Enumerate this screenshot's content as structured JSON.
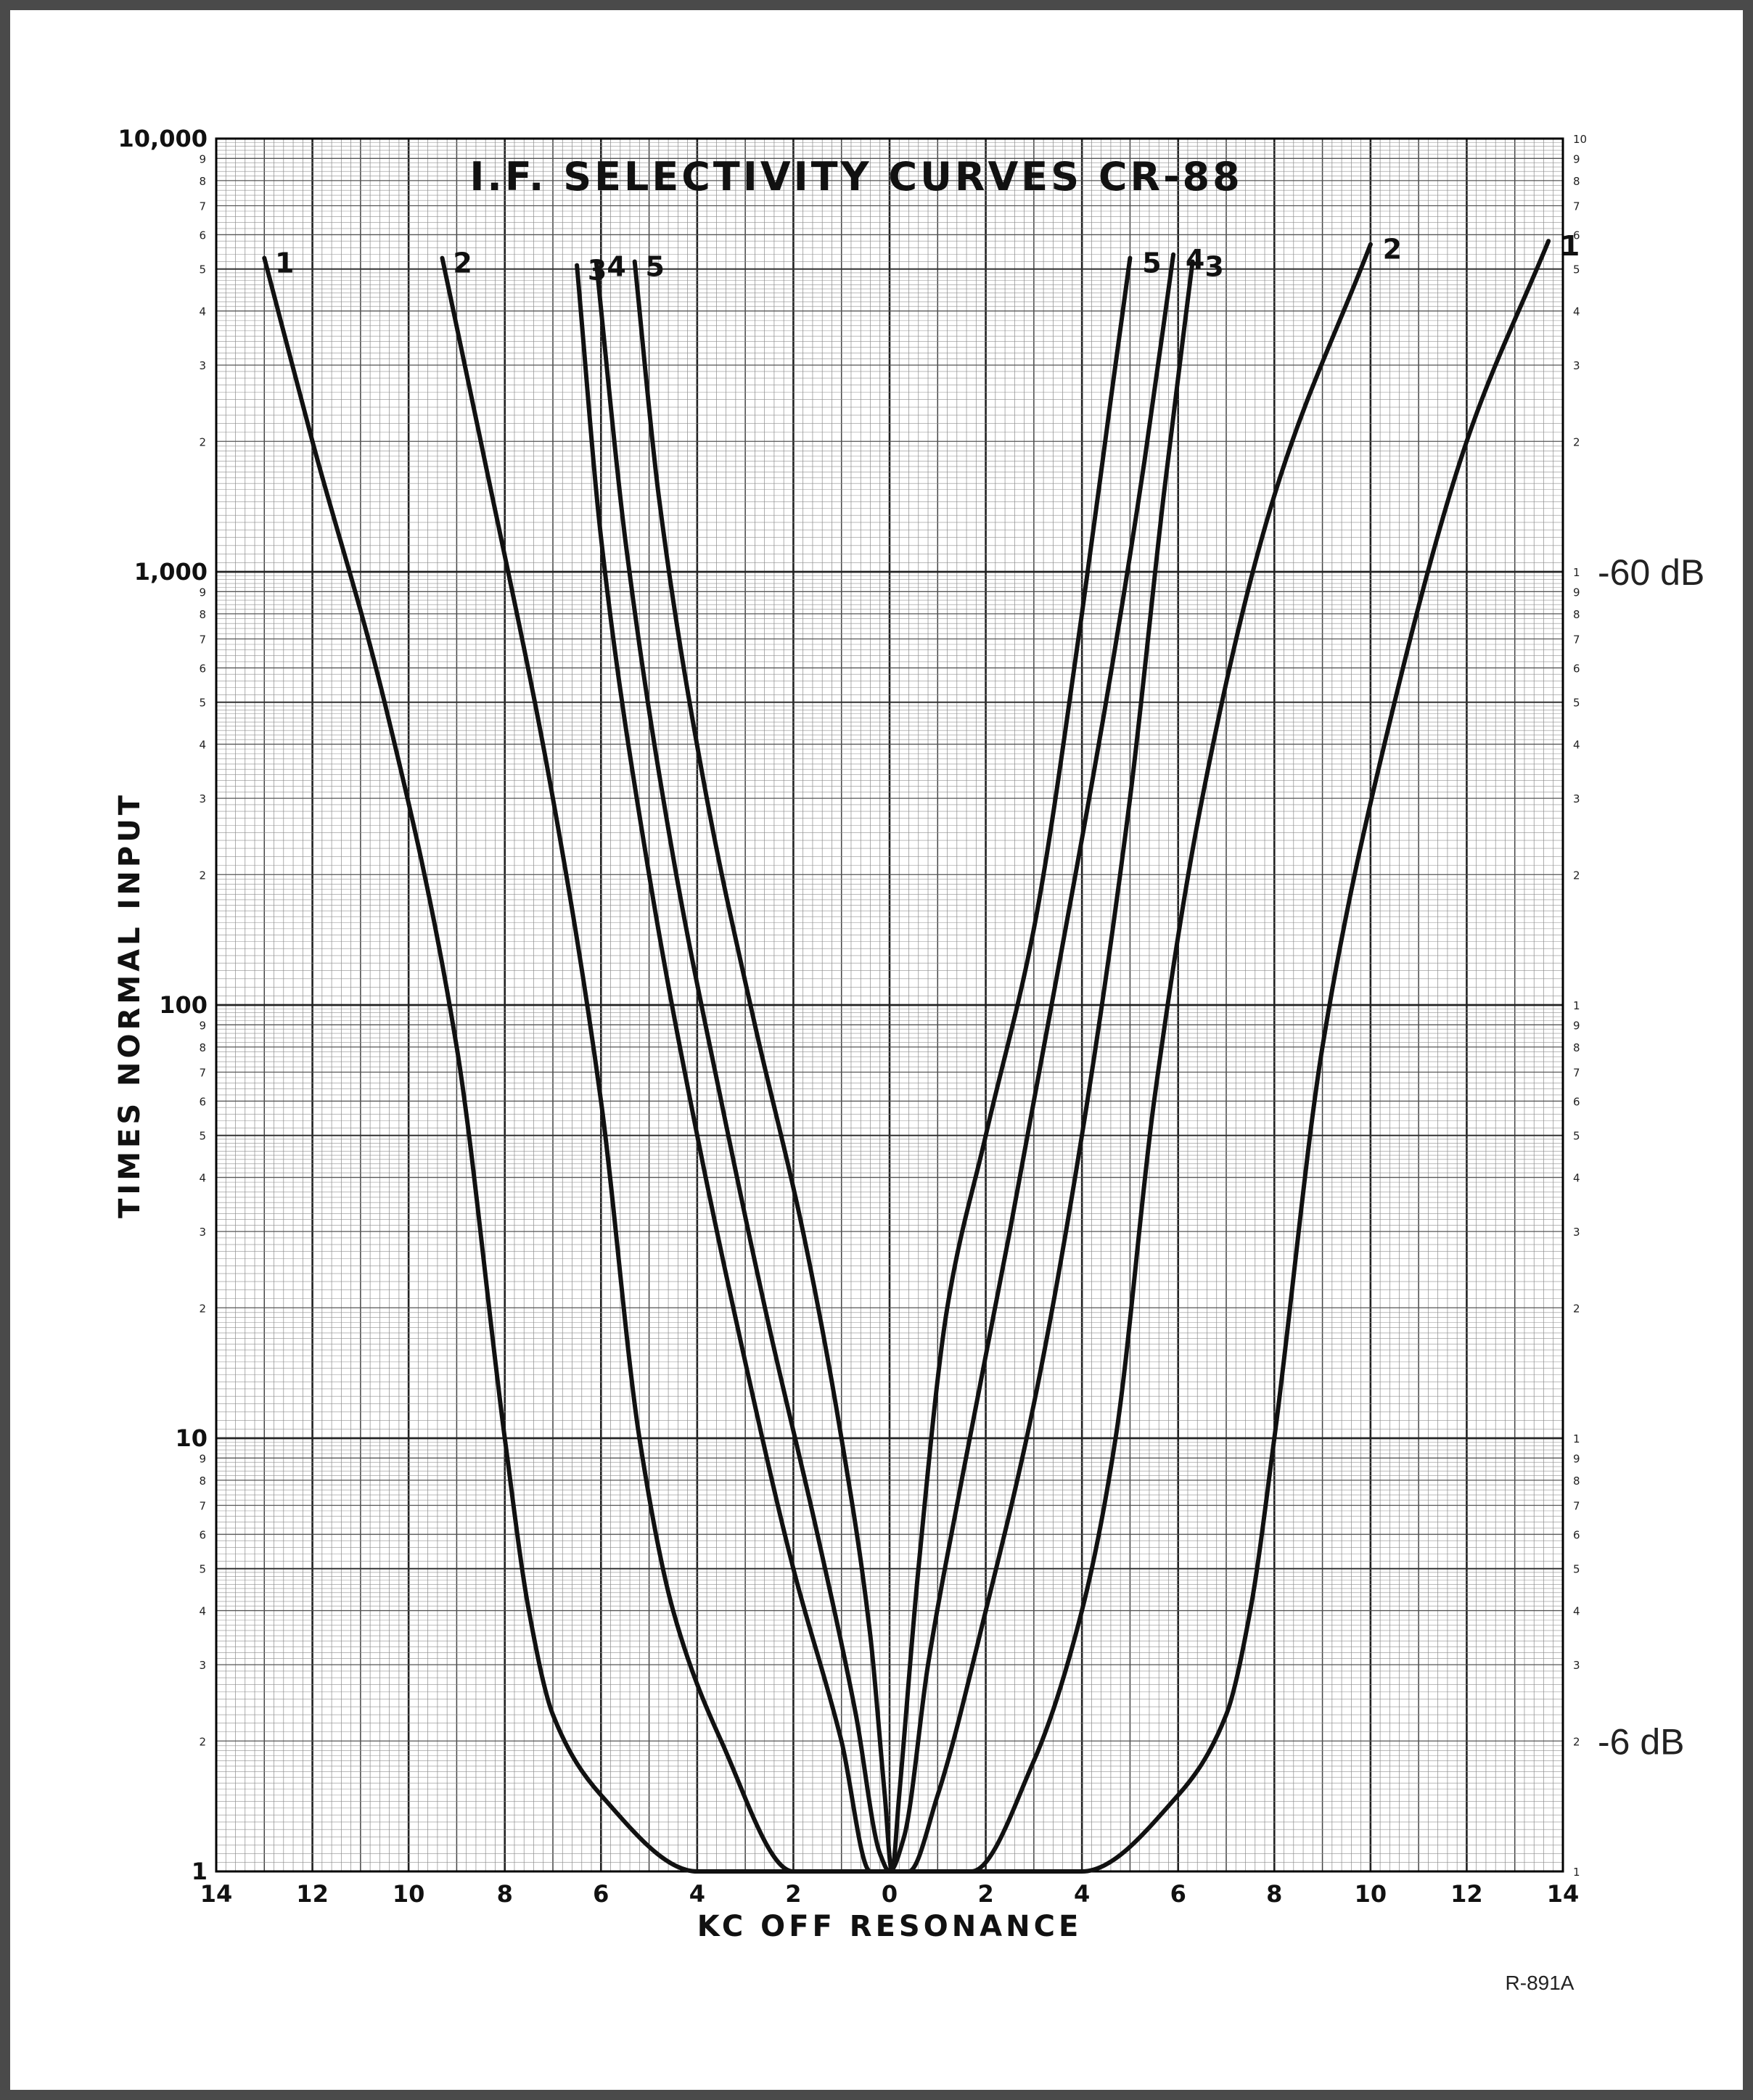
{
  "chart_data": {
    "type": "line",
    "title": "I.F. SELECTIVITY CURVES CR-88",
    "xlabel": "KC OFF RESONANCE",
    "ylabel": "TIMES NORMAL INPUT",
    "xlim": [
      -14,
      14
    ],
    "ylim": [
      1,
      10000
    ],
    "yscale": "log",
    "grid": true,
    "x_tick_labels": [
      "14",
      "12",
      "10",
      "8",
      "6",
      "4",
      "2",
      "0",
      "2",
      "4",
      "6",
      "8",
      "10",
      "12",
      "14"
    ],
    "y_tick_labels": [
      {
        "value": 1,
        "label": "1"
      },
      {
        "value": 10,
        "label": "10"
      },
      {
        "value": 100,
        "label": "100"
      },
      {
        "value": 1000,
        "label": "1,000"
      },
      {
        "value": 10000,
        "label": "10,000"
      }
    ],
    "y_minor_labels": [
      "2",
      "3",
      "4",
      "5",
      "6",
      "7",
      "8",
      "9"
    ],
    "right_decade_label": "1",
    "right_top_label": "10",
    "right_annotations": [
      {
        "value": 1000,
        "text": "-60 dB"
      },
      {
        "value": 2,
        "text": "-6 dB"
      }
    ],
    "reference_code": "R-891A",
    "series": [
      {
        "label": "1",
        "x": [
          -13.0,
          -12.0,
          -10.5,
          -9.0,
          -8.0,
          -7.5,
          -7.0,
          -6.0,
          -4.0,
          4.0,
          6.0,
          7.0,
          7.5,
          8.0,
          9.0,
          10.5,
          12.0,
          13.7
        ],
        "y": [
          5300,
          2000,
          500,
          80,
          10,
          4,
          2.3,
          1.5,
          1.0,
          1.0,
          1.5,
          2.3,
          4,
          10,
          80,
          500,
          2000,
          5800
        ]
      },
      {
        "label": "2",
        "x": [
          -9.3,
          -8.5,
          -7.0,
          -6.0,
          -5.2,
          -4.5,
          -3.5,
          -2.0,
          1.7,
          3.0,
          4.0,
          4.7,
          5.5,
          6.5,
          8.0,
          10.0
        ],
        "y": [
          5300,
          2000,
          300,
          60,
          10,
          4,
          2.0,
          1.0,
          1.0,
          1.8,
          4,
          10,
          60,
          300,
          1500,
          5700
        ]
      },
      {
        "label": "3",
        "x": [
          -6.5,
          -6.0,
          -5.0,
          -4.0,
          -3.0,
          -2.0,
          -1.0,
          -0.4,
          0.2,
          0.4,
          1.0,
          2.0,
          3.0,
          4.0,
          5.0,
          5.7,
          6.3
        ],
        "y": [
          5100,
          1200,
          200,
          50,
          15,
          5,
          2,
          1.0,
          1.0,
          1.0,
          1.5,
          4,
          12,
          50,
          300,
          1500,
          5200
        ]
      },
      {
        "label": "4",
        "x": [
          -6.1,
          -5.5,
          -4.5,
          -3.5,
          -2.5,
          -1.5,
          -0.7,
          -0.2,
          0.0,
          0.3,
          0.8,
          1.5,
          2.5,
          3.5,
          4.5,
          5.3,
          5.9
        ],
        "y": [
          5200,
          1200,
          220,
          60,
          18,
          6,
          2.3,
          1.1,
          1.0,
          1.2,
          3,
          8,
          30,
          120,
          500,
          1800,
          5400
        ]
      },
      {
        "label": "5",
        "x": [
          -5.3,
          -4.8,
          -3.8,
          -2.8,
          -1.8,
          -1.0,
          -0.4,
          -0.1,
          0.05,
          0.2,
          0.6,
          1.2,
          2.0,
          3.0,
          4.0,
          4.6,
          5.0
        ],
        "y": [
          5200,
          1500,
          300,
          90,
          30,
          10,
          3.5,
          1.5,
          1.0,
          1.5,
          5,
          20,
          50,
          150,
          800,
          2500,
          5300
        ]
      }
    ]
  }
}
